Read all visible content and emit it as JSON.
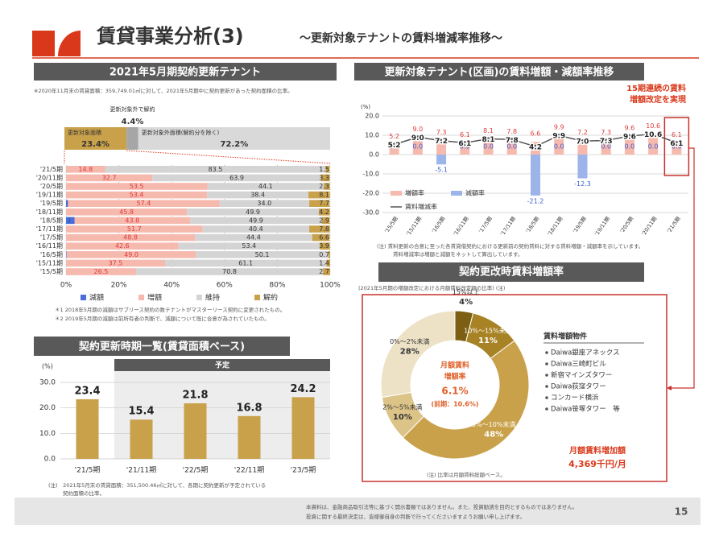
{
  "header": {
    "title": "賃貸事業分析(3)",
    "subtitle": "～更新対象テナントの賃料増減率推移～"
  },
  "footer": {
    "disclaimer": [
      "本資料は、金融商品取引法等に基づく開示書類ではありません。また、投資勧誘を目的とするものではありません。",
      "投資に関する最終決定は、皆様御自身の判断で行ってくださいますようお願い申し上げます。"
    ],
    "page": "15"
  },
  "chart_data": [
    {
      "type": "share_bar",
      "xlim": [
        0,
        100
      ],
      "series": [
        {
          "name": "更新対象面積",
          "color": "#c9a14a",
          "values": [
            23.4
          ],
          "value_labels": [
            "23.4%"
          ]
        },
        {
          "name": "更新対象外で解約",
          "color": "#a6a6a6",
          "values": [
            4.4
          ],
          "value_labels": [
            "4.4%"
          ]
        },
        {
          "name": "更新対象外面積(解約分を除く)",
          "color": "#d9d9d9",
          "values": [
            72.2
          ],
          "value_labels": [
            "72.2%"
          ]
        }
      ]
    },
    {
      "type": "stacked_barh",
      "title": "2021年5月期契約更新テナント",
      "note": "※2020年11月末の賃貸面積：359,749.01㎡に対して、2021年5月期中に契約更新があった契約面積の比率。",
      "categories": [
        "'21/5期",
        "'20/11期",
        "'20/5期",
        "'19/11期",
        "'19/5期",
        "'18/11期",
        "'18/5期",
        "'17/11期",
        "'17/5期",
        "'16/11期",
        "'16/5期",
        "'15/11期",
        "'15/5期"
      ],
      "series": [
        {
          "name": "減額",
          "color": "#4a6fdc",
          "values": [
            null,
            null,
            null,
            null,
            0.7,
            null,
            3.2,
            null,
            null,
            null,
            0.2,
            null,
            null
          ],
          "value_labels": [
            null,
            null,
            null,
            null,
            "0.7*2",
            null,
            "3.2*1",
            null,
            null,
            null,
            "0.2",
            null,
            null
          ]
        },
        {
          "name": "増額",
          "color": "#f6b9ae",
          "values": [
            14.8,
            32.7,
            53.5,
            53.4,
            57.4,
            45.8,
            43.8,
            51.7,
            48.8,
            42.6,
            49.0,
            37.5,
            26.5
          ],
          "value_labels": [
            "14.8",
            "32.7",
            "53.5",
            "53.4",
            "57.4",
            "45.8",
            "43.8",
            "51.7",
            "48.8",
            "42.6",
            "49.0",
            "37.5",
            "26.5"
          ]
        },
        {
          "name": "維持",
          "color": "#d4d4d4",
          "values": [
            83.5,
            63.9,
            44.1,
            38.4,
            34.0,
            49.9,
            49.9,
            40.4,
            44.4,
            53.4,
            50.1,
            61.1,
            70.8
          ],
          "value_labels": [
            "83.5",
            "63.9",
            "44.1",
            "38.4",
            "34.0",
            "49.9",
            "49.9",
            "40.4",
            "44.4",
            "53.4",
            "50.1",
            "61.1",
            "70.8"
          ]
        },
        {
          "name": "解約",
          "color": "#c9a14a",
          "values": [
            1.5,
            3.3,
            2.3,
            8.1,
            7.7,
            4.2,
            2.9,
            7.8,
            6.6,
            3.9,
            0.7,
            1.4,
            2.7
          ],
          "value_labels": [
            "1.5",
            "3.3",
            "2.3",
            "8.1",
            "7.7",
            "4.2",
            "2.9",
            "7.8",
            "6.6",
            "3.9",
            "0.7",
            "1.4",
            "2.7"
          ]
        }
      ],
      "xlim": [
        0,
        100
      ],
      "xticks": [
        {
          "value": 0,
          "label": "0%"
        },
        {
          "value": 20,
          "label": "20%"
        },
        {
          "value": 40,
          "label": "40%"
        },
        {
          "value": 60,
          "label": "60%"
        },
        {
          "value": 80,
          "label": "80%"
        },
        {
          "value": 100,
          "label": "100%"
        }
      ],
      "footnotes": [
        "＊1 2018年5月期の減額はサブリース契約の数テナントがマスターリース契約に変更されたもの。",
        "＊2 2019年5月期の減額は前所有者の判断で、減額について既に合意が為されていたもの。"
      ]
    },
    {
      "type": "bar_line",
      "title": "更新対象テナント(区画)の賃料増額・減額率推移",
      "y_label": "(%)",
      "annotation": [
        "15期連続の賃料",
        "増額改定を実現"
      ],
      "categories": [
        "'15/5期",
        "'15/11期",
        "'16/5期",
        "'16/11期",
        "'17/5期",
        "'17/11期",
        "'18/5期",
        "'18/11期",
        "'19/5期",
        "'19/11期",
        "'20/5期",
        "'20/11期",
        "'21/5期"
      ],
      "series": [
        {
          "name": "増額率",
          "kind": "bar",
          "color": "#f6b9ae",
          "values": [
            5.2,
            9.0,
            7.3,
            6.1,
            8.1,
            7.8,
            6.6,
            9.9,
            7.2,
            7.3,
            9.6,
            10.6,
            6.1
          ],
          "value_labels": [
            "5.2",
            "9.0",
            "7.3",
            "6.1",
            "8.1",
            "7.8",
            "6.6",
            "9.9",
            "7.2",
            "7.3",
            "9.6",
            "10.6",
            "6.1"
          ]
        },
        {
          "name": "減額率",
          "kind": "bar",
          "color": "#9db4ea",
          "values": [
            0.0,
            0.0,
            -5.1,
            0.0,
            0.0,
            0.0,
            -21.2,
            0.0,
            -12.3,
            0.0,
            0.0,
            0.0,
            0.0
          ],
          "value_labels": [
            "0.0",
            "0.0",
            "-5.1",
            "0.0",
            "0.0",
            "0.0",
            "-21.2",
            "0.0",
            "-12.3",
            "0.0",
            "0.0",
            "0.0",
            "0.0"
          ]
        },
        {
          "name": "賃料増減率",
          "kind": "line",
          "color": "#555555",
          "values": [
            5.2,
            9.0,
            7.2,
            6.1,
            8.1,
            7.8,
            4.2,
            9.9,
            7.0,
            7.3,
            9.6,
            10.6,
            6.1
          ],
          "value_labels": [
            "5.2",
            "9.0",
            "7.2",
            "6.1",
            "8.1",
            "7.8",
            "4.2",
            "9.9",
            "7.0",
            "7.3",
            "9.6",
            "10.6",
            "6.1"
          ]
        }
      ],
      "ylim": [
        -30,
        20
      ],
      "yticks": [
        {
          "value": 20,
          "label": "20.0"
        },
        {
          "value": 10,
          "label": "10.0"
        },
        {
          "value": 0,
          "label": "0.0"
        },
        {
          "value": -10,
          "label": "-10.0"
        },
        {
          "value": -20,
          "label": "-20.0"
        },
        {
          "value": -30,
          "label": "-30.0"
        }
      ],
      "grid": true,
      "note": [
        "(注) 賃料更新の合意に至った各賃貸借契約における更新前の契約賃料に対する賃料増額・減額率を示しています。",
        "賃料増減率は増額と減額をネットして算出しています。"
      ]
    },
    {
      "type": "bar",
      "title": "契約更新時期一覧(賃貸面積ベース)",
      "y_label": "(%)",
      "band_label": "予定",
      "color": "#c9a14a",
      "categories": [
        "'21/5期",
        "'21/11期",
        "'22/5期",
        "'22/11期",
        "'23/5期"
      ],
      "values": [
        23.4,
        15.4,
        21.8,
        16.8,
        24.2
      ],
      "ylim": [
        0,
        30
      ],
      "yticks": [
        {
          "value": 0,
          "label": "0.0"
        },
        {
          "value": 10,
          "label": "10.0"
        },
        {
          "value": 20,
          "label": "20.0"
        },
        {
          "value": 30,
          "label": "30.0"
        }
      ],
      "grid": true,
      "note": [
        "(注)　2021年5月末の賃貸面積：351,500.46㎡に対して、各期に契約更新が予定されている",
        "契約面積の比率。"
      ]
    },
    {
      "type": "donut",
      "title": "契約更改時賃料増額率",
      "subtitle": "(2021年5月期の増額改定における月額賃料改定額の比率) (注)",
      "categories": [
        "15%以上",
        "10%～15%未満",
        "5%～10%未満",
        "2%～5%未満",
        "0%～2%未満"
      ],
      "values": [
        4,
        11,
        48,
        10,
        28
      ],
      "value_labels": [
        "4%",
        "11%",
        "48%",
        "10%",
        "28%"
      ],
      "colors": [
        "#7d5f14",
        "#a88325",
        "#c9a14a",
        "#dcc388",
        "#ede2c6"
      ],
      "center_text": [
        "月額賃料",
        "増額率",
        "6.1%",
        "(前期：10.6%)"
      ],
      "properties_title": "賃料増額物件",
      "properties": [
        "Daiwa銀座アネックス",
        "Daiwa三崎町ビル",
        "新宿マインズタワー",
        "Daiwa荻窪タワー",
        "コンカード横浜",
        "Daiwa笹塚タワー　等"
      ],
      "increase_label": "月額賃料増加額",
      "increase_value": "4,369千円/月",
      "note": "(注) 比率は月額賃料総額ベース。"
    }
  ]
}
